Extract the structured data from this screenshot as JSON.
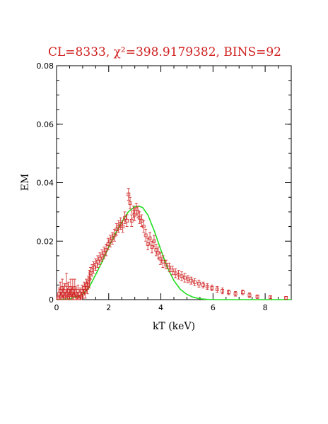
{
  "chart_data": {
    "type": "scatter",
    "title": "CL=8333, χ²=398.9179382, BINS=92",
    "xlabel": "kT (keV)",
    "ylabel": "EM",
    "xlim": [
      0,
      9
    ],
    "ylim": [
      0,
      0.08
    ],
    "x_ticks": [
      "0",
      "2",
      "4",
      "6",
      "8"
    ],
    "y_ticks": [
      "0",
      "0.02",
      "0.04",
      "0.06",
      "0.08"
    ],
    "grid": false,
    "legend": "none",
    "colors": {
      "data": "#d02020",
      "fit": "#22dd22",
      "axes": "#000000"
    },
    "series": [
      {
        "style": "points-with-error-bars",
        "points": [
          [
            0.05,
            0.0005,
            0.001
          ],
          [
            0.1,
            0.002,
            0.002
          ],
          [
            0.14,
            0.003,
            0.003
          ],
          [
            0.18,
            0.001,
            0.0015
          ],
          [
            0.22,
            0.004,
            0.003
          ],
          [
            0.26,
            0.002,
            0.002
          ],
          [
            0.3,
            0.003,
            0.0025
          ],
          [
            0.34,
            0.001,
            0.0015
          ],
          [
            0.38,
            0.005,
            0.004
          ],
          [
            0.42,
            0.002,
            0.002
          ],
          [
            0.46,
            0.003,
            0.003
          ],
          [
            0.5,
            0.0015,
            0.002
          ],
          [
            0.54,
            0.004,
            0.003
          ],
          [
            0.58,
            0.002,
            0.002
          ],
          [
            0.62,
            0.003,
            0.004
          ],
          [
            0.66,
            0.0015,
            0.002
          ],
          [
            0.7,
            0.004,
            0.003
          ],
          [
            0.74,
            0.002,
            0.002
          ],
          [
            0.78,
            0.001,
            0.0015
          ],
          [
            0.82,
            0.003,
            0.002
          ],
          [
            0.86,
            0.0005,
            0.001
          ],
          [
            0.9,
            0.002,
            0.002
          ],
          [
            0.94,
            0.001,
            0.0015
          ],
          [
            0.98,
            0.003,
            0.002
          ],
          [
            1.02,
            0.002,
            0.0015
          ],
          [
            1.06,
            0.004,
            0.002
          ],
          [
            1.1,
            0.003,
            0.0025
          ],
          [
            1.14,
            0.005,
            0.002
          ],
          [
            1.18,
            0.004,
            0.002
          ],
          [
            1.22,
            0.006,
            0.002
          ],
          [
            1.26,
            0.007,
            0.003
          ],
          [
            1.3,
            0.009,
            0.002
          ],
          [
            1.36,
            0.01,
            0.002
          ],
          [
            1.42,
            0.011,
            0.002
          ],
          [
            1.5,
            0.012,
            0.002
          ],
          [
            1.58,
            0.013,
            0.002
          ],
          [
            1.66,
            0.014,
            0.002
          ],
          [
            1.74,
            0.015,
            0.002
          ],
          [
            1.82,
            0.016,
            0.002
          ],
          [
            1.9,
            0.017,
            0.002
          ],
          [
            1.98,
            0.019,
            0.002
          ],
          [
            2.06,
            0.02,
            0.002
          ],
          [
            2.14,
            0.021,
            0.002
          ],
          [
            2.22,
            0.022,
            0.002
          ],
          [
            2.3,
            0.024,
            0.002
          ],
          [
            2.38,
            0.025,
            0.002
          ],
          [
            2.46,
            0.026,
            0.002
          ],
          [
            2.54,
            0.025,
            0.002
          ],
          [
            2.62,
            0.028,
            0.002
          ],
          [
            2.7,
            0.027,
            0.002
          ],
          [
            2.76,
            0.036,
            0.002
          ],
          [
            2.82,
            0.033,
            0.002
          ],
          [
            2.88,
            0.027,
            0.002
          ],
          [
            2.94,
            0.03,
            0.002
          ],
          [
            3.0,
            0.029,
            0.002
          ],
          [
            3.06,
            0.031,
            0.002
          ],
          [
            3.12,
            0.03,
            0.002
          ],
          [
            3.18,
            0.028,
            0.002
          ],
          [
            3.26,
            0.027,
            0.002
          ],
          [
            3.34,
            0.025,
            0.002
          ],
          [
            3.42,
            0.022,
            0.002
          ],
          [
            3.5,
            0.019,
            0.002
          ],
          [
            3.58,
            0.021,
            0.002
          ],
          [
            3.66,
            0.018,
            0.002
          ],
          [
            3.74,
            0.02,
            0.002
          ],
          [
            3.82,
            0.017,
            0.002
          ],
          [
            3.9,
            0.016,
            0.002
          ],
          [
            3.98,
            0.014,
            0.002
          ],
          [
            4.08,
            0.013,
            0.002
          ],
          [
            4.2,
            0.012,
            0.0015
          ],
          [
            4.32,
            0.011,
            0.0015
          ],
          [
            4.44,
            0.01,
            0.0015
          ],
          [
            4.56,
            0.009,
            0.0015
          ],
          [
            4.68,
            0.0085,
            0.0015
          ],
          [
            4.8,
            0.008,
            0.0015
          ],
          [
            4.92,
            0.0075,
            0.0015
          ],
          [
            5.04,
            0.007,
            0.0012
          ],
          [
            5.16,
            0.0065,
            0.0012
          ],
          [
            5.3,
            0.006,
            0.0012
          ],
          [
            5.46,
            0.0055,
            0.0012
          ],
          [
            5.62,
            0.005,
            0.001
          ],
          [
            5.78,
            0.0045,
            0.001
          ],
          [
            5.96,
            0.004,
            0.001
          ],
          [
            6.16,
            0.0035,
            0.001
          ],
          [
            6.36,
            0.003,
            0.001
          ],
          [
            6.6,
            0.0025,
            0.0008
          ],
          [
            6.86,
            0.002,
            0.0008
          ],
          [
            7.14,
            0.0025,
            0.0008
          ],
          [
            7.4,
            0.0015,
            0.0008
          ],
          [
            7.7,
            0.001,
            0.0006
          ],
          [
            8.2,
            0.0008,
            0.0005
          ],
          [
            8.8,
            0.0006,
            0.0005
          ]
        ]
      },
      {
        "style": "line",
        "x": [
          0,
          0.5,
          1.0,
          1.25,
          1.5,
          1.75,
          2.0,
          2.25,
          2.5,
          2.75,
          3.0,
          3.15,
          3.3,
          3.5,
          3.75,
          4.0,
          4.25,
          4.5,
          4.75,
          5.0,
          5.25,
          5.5,
          5.75,
          6.0,
          9.0
        ],
        "y": [
          0,
          0.0002,
          0.0018,
          0.0042,
          0.0085,
          0.013,
          0.018,
          0.0225,
          0.0265,
          0.03,
          0.0318,
          0.032,
          0.0315,
          0.029,
          0.0235,
          0.017,
          0.011,
          0.0065,
          0.0035,
          0.0018,
          0.0008,
          0.0003,
          0.0001,
          0,
          0
        ]
      }
    ]
  }
}
